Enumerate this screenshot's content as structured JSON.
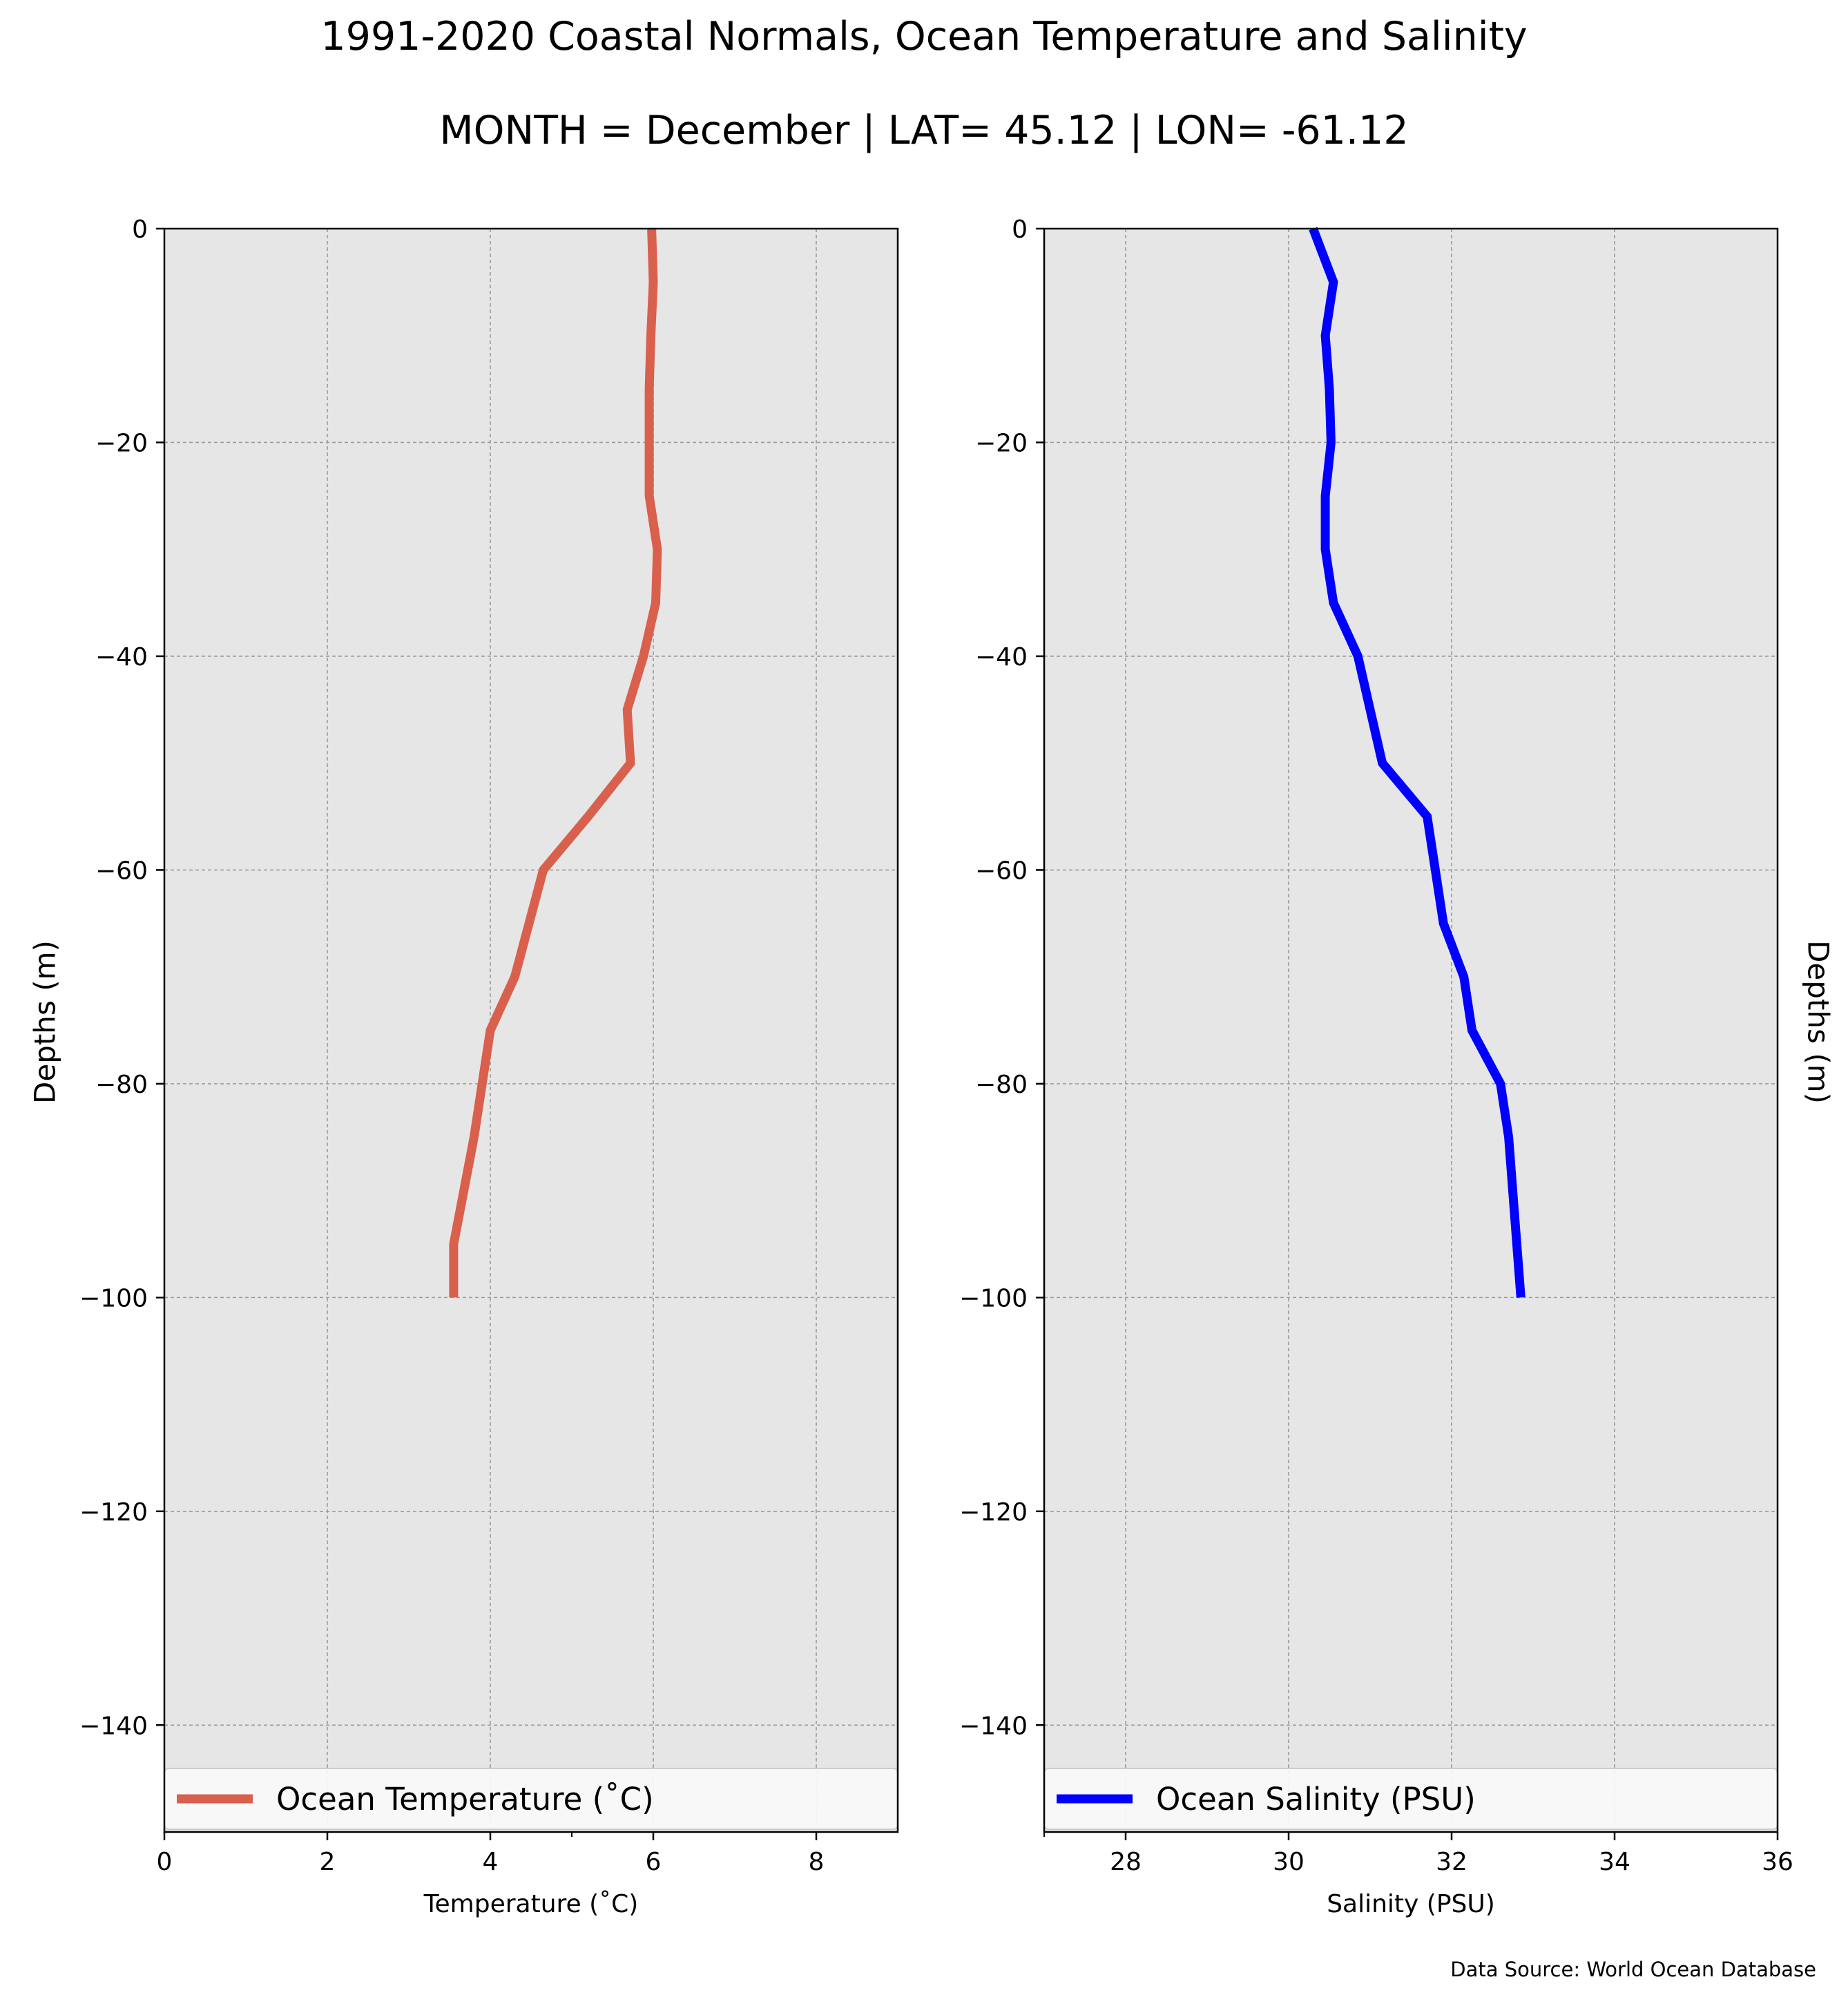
{
  "figure": {
    "title": "1991-2020 Coastal Normals, Ocean Temperature and Salinity",
    "subtitle": "MONTH = December | LAT= 45.12 | LON= -61.12",
    "source": "Data Source: World Ocean Database"
  },
  "chart_data": [
    {
      "type": "line",
      "xlabel": "Temperature ($^\\circ$C)",
      "xlabel_display": "Temperature (˚C)",
      "ylabel": "Depths (m)",
      "xlim": [
        0,
        9
      ],
      "ylim": [
        -150,
        0
      ],
      "xticks": [
        0,
        2,
        4,
        6,
        8
      ],
      "yticks": [
        0,
        -20,
        -40,
        -60,
        -80,
        -100,
        -120,
        -140
      ],
      "grid": true,
      "legend_position": "bottom",
      "series": [
        {
          "name": "Ocean Temperature (˚C)",
          "color": "#d9604c",
          "x": [
            5.98,
            6.0,
            5.97,
            5.95,
            5.95,
            5.95,
            6.05,
            6.03,
            5.88,
            5.68,
            5.72,
            5.2,
            4.65,
            4.3,
            4.0,
            3.9,
            3.8,
            3.55,
            3.55
          ],
          "y": [
            0,
            -5,
            -10,
            -15,
            -20,
            -25,
            -30,
            -35,
            -40,
            -45,
            -50,
            -55,
            -60,
            -70,
            -75,
            -80,
            -85,
            -95,
            -100
          ]
        }
      ]
    },
    {
      "type": "line",
      "xlabel": "Salinity (PSU)",
      "ylabel": "Depths (m)",
      "xlim": [
        27,
        36
      ],
      "ylim": [
        -150,
        0
      ],
      "xticks": [
        28,
        30,
        32,
        34,
        36
      ],
      "yticks": [
        0,
        -20,
        -40,
        -60,
        -80,
        -100,
        -120,
        -140
      ],
      "grid": true,
      "legend_position": "bottom",
      "series": [
        {
          "name": "Ocean Salinity (PSU)",
          "color": "#0000ff",
          "x": [
            30.3,
            30.55,
            30.45,
            30.5,
            30.52,
            30.45,
            30.45,
            30.55,
            30.85,
            31.0,
            31.15,
            31.7,
            31.8,
            31.9,
            32.15,
            32.25,
            32.6,
            32.7,
            32.8,
            32.85
          ],
          "y": [
            0,
            -5,
            -10,
            -15,
            -20,
            -25,
            -30,
            -35,
            -40,
            -45,
            -50,
            -55,
            -60,
            -65,
            -70,
            -75,
            -80,
            -85,
            -95,
            -100
          ]
        }
      ]
    }
  ]
}
